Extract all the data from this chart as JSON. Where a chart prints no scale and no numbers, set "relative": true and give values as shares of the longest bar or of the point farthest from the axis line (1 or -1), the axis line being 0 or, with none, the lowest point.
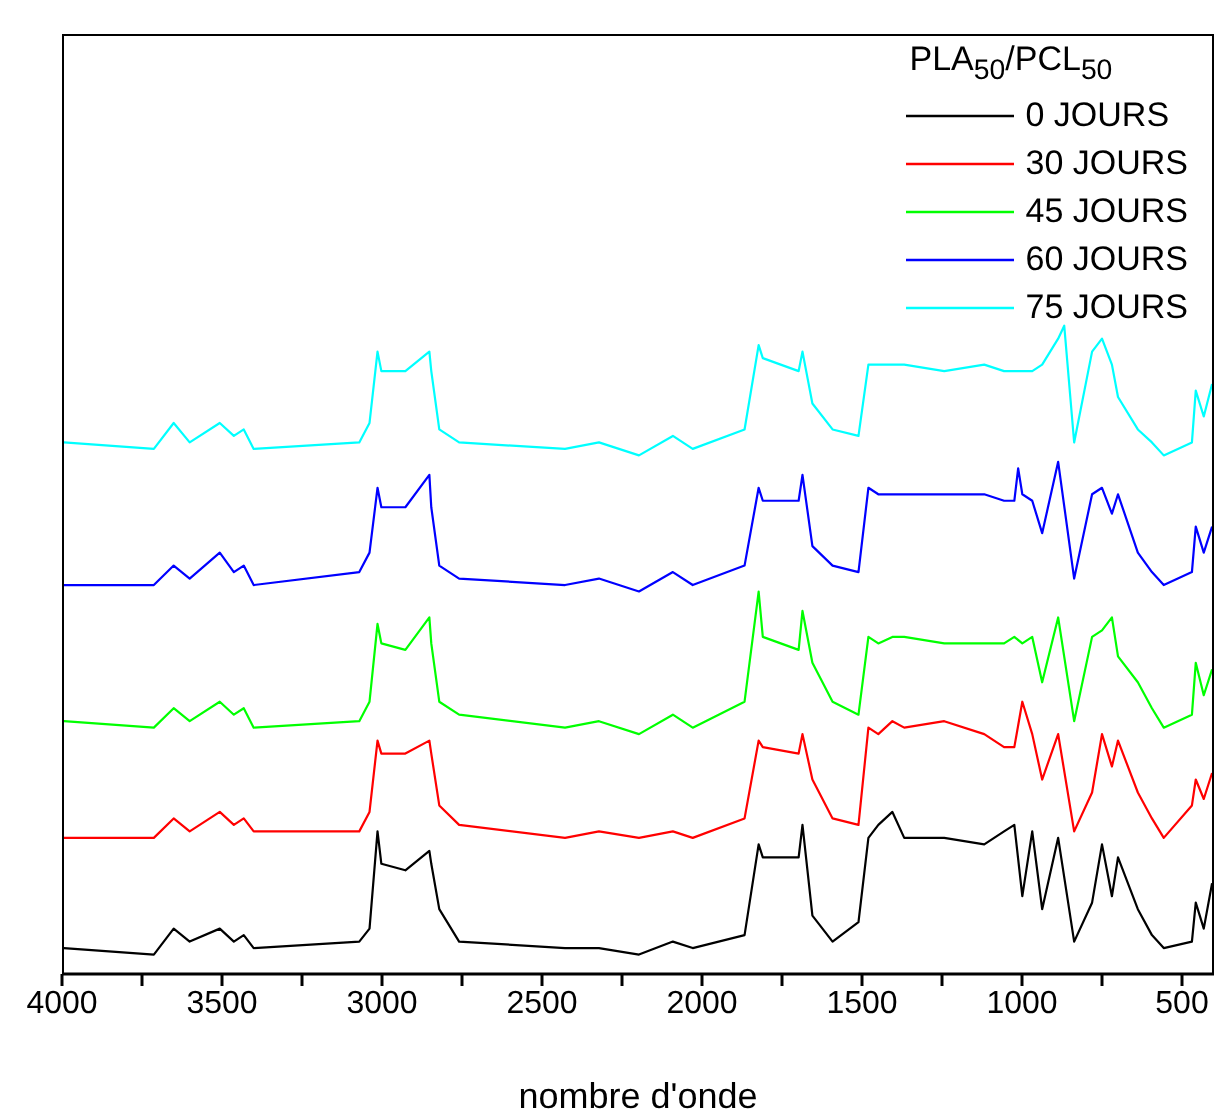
{
  "chart_data": {
    "type": "line",
    "relative": true,
    "xlabel": "nombre d'onde",
    "legend_title": "PLA$_{50}$/PCL$_{50}$",
    "legend": "top right",
    "marker": "none",
    "line_style": "solid",
    "grid": false,
    "xlim": [
      4000,
      400
    ],
    "xticks": [
      4000,
      {
        "value": 3750,
        "label": null
      },
      3500,
      {
        "value": 3250,
        "label": null
      },
      3000,
      {
        "value": 2750,
        "label": null
      },
      2500,
      {
        "value": 2250,
        "label": null
      },
      2000,
      {
        "value": 1750,
        "label": null
      },
      1500,
      {
        "value": 1250,
        "label": null
      },
      1000,
      {
        "value": 750,
        "label": null
      },
      500
    ],
    "x": [
      3994,
      3713,
      3651,
      3601,
      3507,
      3463,
      3432,
      3401,
      3071,
      3039,
      3014,
      3002,
      2927,
      2852,
      2846,
      2821,
      2759,
      2428,
      2322,
      2197,
      2091,
      2029,
      1867,
      1823,
      1810,
      1698,
      1686,
      1655,
      1592,
      1511,
      1480,
      1449,
      1405,
      1368,
      1243,
      1118,
      1056,
      1024,
      999,
      968,
      937,
      887,
      837,
      781,
      750,
      719,
      700,
      638,
      594,
      557,
      469,
      457,
      432,
      406
    ],
    "series": [
      {
        "name": "0 JOURS",
        "color": "#000000",
        "values": [
          0.04,
          0.03,
          0.07,
          0.05,
          0.07,
          0.05,
          0.06,
          0.04,
          0.05,
          0.07,
          0.22,
          0.17,
          0.16,
          0.19,
          0.17,
          0.1,
          0.05,
          0.04,
          0.04,
          0.03,
          0.05,
          0.04,
          0.06,
          0.2,
          0.18,
          0.18,
          0.23,
          0.09,
          0.05,
          0.08,
          0.21,
          0.23,
          0.25,
          0.21,
          0.21,
          0.2,
          0.22,
          0.23,
          0.12,
          0.22,
          0.1,
          0.21,
          0.05,
          0.11,
          0.2,
          0.12,
          0.18,
          0.1,
          0.06,
          0.04,
          0.05,
          0.11,
          0.07,
          0.14
        ]
      },
      {
        "name": "30 JOURS",
        "color": "#ff0000",
        "values": [
          0.21,
          0.21,
          0.24,
          0.22,
          0.25,
          0.23,
          0.24,
          0.22,
          0.22,
          0.25,
          0.36,
          0.34,
          0.34,
          0.36,
          0.34,
          0.26,
          0.23,
          0.21,
          0.22,
          0.21,
          0.22,
          0.21,
          0.24,
          0.36,
          0.35,
          0.34,
          0.37,
          0.3,
          0.24,
          0.23,
          0.38,
          0.37,
          0.39,
          0.38,
          0.39,
          0.37,
          0.35,
          0.35,
          0.42,
          0.37,
          0.3,
          0.37,
          0.22,
          0.28,
          0.37,
          0.32,
          0.36,
          0.28,
          0.24,
          0.21,
          0.26,
          0.3,
          0.27,
          0.31
        ]
      },
      {
        "name": "45 JOURS",
        "color": "#00ff00",
        "values": [
          0.39,
          0.38,
          0.41,
          0.39,
          0.42,
          0.4,
          0.41,
          0.38,
          0.39,
          0.42,
          0.54,
          0.51,
          0.5,
          0.55,
          0.51,
          0.42,
          0.4,
          0.38,
          0.39,
          0.37,
          0.4,
          0.38,
          0.42,
          0.59,
          0.52,
          0.5,
          0.56,
          0.48,
          0.42,
          0.4,
          0.52,
          0.51,
          0.52,
          0.52,
          0.51,
          0.51,
          0.51,
          0.52,
          0.51,
          0.52,
          0.45,
          0.55,
          0.39,
          0.52,
          0.53,
          0.55,
          0.49,
          0.45,
          0.41,
          0.38,
          0.4,
          0.48,
          0.43,
          0.47
        ]
      },
      {
        "name": "60 JOURS",
        "color": "#0000ff",
        "x": [
          3994,
          3713,
          3651,
          3601,
          3507,
          3463,
          3432,
          3401,
          3071,
          3039,
          3014,
          3002,
          2927,
          2852,
          2846,
          2821,
          2759,
          2428,
          2322,
          2197,
          2091,
          2029,
          1867,
          1823,
          1810,
          1698,
          1686,
          1655,
          1592,
          1511,
          1480,
          1449,
          1405,
          1368,
          1243,
          1118,
          1056,
          1024,
          1012,
          999,
          968,
          937,
          887,
          837,
          781,
          750,
          719,
          700,
          638,
          594,
          557,
          469,
          457,
          432,
          406
        ],
        "values": [
          0.6,
          0.6,
          0.63,
          0.61,
          0.65,
          0.62,
          0.63,
          0.6,
          0.62,
          0.65,
          0.75,
          0.72,
          0.72,
          0.77,
          0.72,
          0.63,
          0.61,
          0.6,
          0.61,
          0.59,
          0.62,
          0.6,
          0.63,
          0.75,
          0.73,
          0.73,
          0.77,
          0.66,
          0.63,
          0.62,
          0.75,
          0.74,
          0.74,
          0.74,
          0.74,
          0.74,
          0.73,
          0.73,
          0.78,
          0.74,
          0.73,
          0.68,
          0.79,
          0.61,
          0.74,
          0.75,
          0.71,
          0.74,
          0.65,
          0.62,
          0.6,
          0.62,
          0.69,
          0.65,
          0.69
        ]
      },
      {
        "name": "75 JOURS",
        "color": "#00ffff",
        "x": [
          3994,
          3713,
          3651,
          3601,
          3507,
          3463,
          3432,
          3401,
          3071,
          3039,
          3014,
          3002,
          2927,
          2852,
          2846,
          2821,
          2759,
          2428,
          2322,
          2197,
          2091,
          2029,
          1867,
          1823,
          1810,
          1698,
          1686,
          1655,
          1592,
          1511,
          1480,
          1449,
          1405,
          1368,
          1243,
          1118,
          1056,
          1024,
          999,
          968,
          937,
          887,
          868,
          837,
          781,
          750,
          719,
          700,
          638,
          594,
          557,
          469,
          457,
          432,
          406
        ],
        "values": [
          0.82,
          0.81,
          0.85,
          0.82,
          0.85,
          0.83,
          0.84,
          0.81,
          0.82,
          0.85,
          0.96,
          0.93,
          0.93,
          0.96,
          0.93,
          0.84,
          0.82,
          0.81,
          0.82,
          0.8,
          0.83,
          0.81,
          0.84,
          0.97,
          0.95,
          0.93,
          0.96,
          0.88,
          0.84,
          0.83,
          0.94,
          0.94,
          0.94,
          0.94,
          0.93,
          0.94,
          0.93,
          0.93,
          0.93,
          0.93,
          0.94,
          0.98,
          1,
          0.82,
          0.96,
          0.98,
          0.94,
          0.89,
          0.84,
          0.82,
          0.8,
          0.82,
          0.9,
          0.86,
          0.91
        ]
      }
    ]
  }
}
